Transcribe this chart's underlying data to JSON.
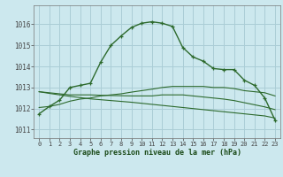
{
  "title": "Graphe pression niveau de la mer (hPa)",
  "background_color": "#cce8ee",
  "grid_color": "#aacdd6",
  "line_color": "#2d6a2d",
  "x_labels": [
    "0",
    "1",
    "2",
    "3",
    "4",
    "5",
    "6",
    "7",
    "8",
    "9",
    "10",
    "11",
    "12",
    "13",
    "14",
    "15",
    "16",
    "17",
    "18",
    "19",
    "20",
    "21",
    "22",
    "23"
  ],
  "y_ticks": [
    1011,
    1012,
    1013,
    1014,
    1015,
    1016
  ],
  "ylim": [
    1010.6,
    1016.9
  ],
  "xlim": [
    -0.5,
    23.5
  ],
  "main_curve": [
    1011.75,
    1012.1,
    1012.4,
    1013.0,
    1013.1,
    1013.2,
    1014.2,
    1015.0,
    1015.45,
    1015.85,
    1016.05,
    1016.12,
    1016.05,
    1015.9,
    1014.9,
    1014.45,
    1014.25,
    1013.9,
    1013.85,
    1013.85,
    1013.35,
    1013.1,
    1012.5,
    1011.45
  ],
  "line2": [
    1012.05,
    1012.1,
    1012.2,
    1012.35,
    1012.45,
    1012.5,
    1012.6,
    1012.65,
    1012.7,
    1012.78,
    1012.85,
    1012.92,
    1013.0,
    1013.05,
    1013.05,
    1013.05,
    1013.05,
    1013.0,
    1013.0,
    1012.95,
    1012.85,
    1012.8,
    1012.75,
    1012.6
  ],
  "line3": [
    1012.8,
    1012.75,
    1012.7,
    1012.65,
    1012.65,
    1012.65,
    1012.63,
    1012.62,
    1012.61,
    1012.6,
    1012.6,
    1012.6,
    1012.65,
    1012.65,
    1012.65,
    1012.6,
    1012.55,
    1012.5,
    1012.45,
    1012.38,
    1012.28,
    1012.18,
    1012.08,
    1011.95
  ],
  "line4": [
    1012.8,
    1012.72,
    1012.65,
    1012.58,
    1012.52,
    1012.46,
    1012.42,
    1012.38,
    1012.34,
    1012.3,
    1012.25,
    1012.2,
    1012.15,
    1012.1,
    1012.05,
    1012.0,
    1011.95,
    1011.9,
    1011.85,
    1011.8,
    1011.75,
    1011.7,
    1011.65,
    1011.55
  ]
}
